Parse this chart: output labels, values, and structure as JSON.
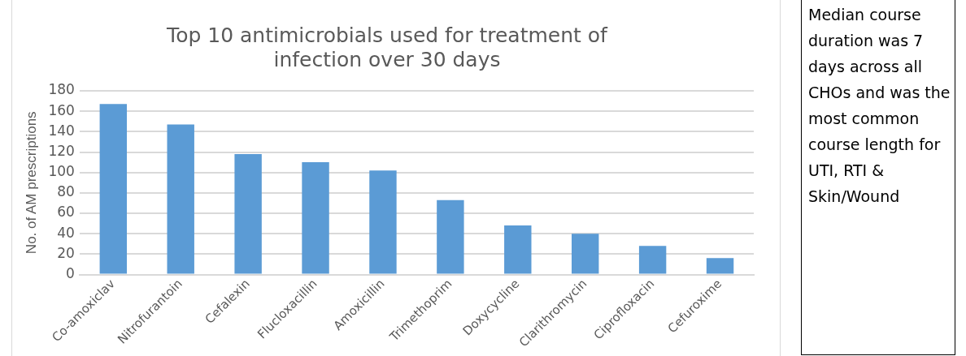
{
  "chart_data": {
    "type": "bar",
    "title": "Top 10 antimicrobials used for treatment of infection over 30 days",
    "ylabel": "No. of AM prescriptions",
    "categories": [
      "Co-amoxiclav",
      "Nitrofurantoin",
      "Cefalexin",
      "Flucloxacillin",
      "Amoxicillin",
      "Trimethoprim",
      "Doxycycline",
      "Clarithromycin",
      "Ciprofloxacin",
      "Cefuroxime"
    ],
    "values": [
      167,
      147,
      118,
      110,
      102,
      73,
      48,
      40,
      28,
      16
    ],
    "color": "#5b9bd5",
    "ylim": [
      0,
      180
    ],
    "yticks": [
      0,
      20,
      40,
      60,
      80,
      100,
      120,
      140,
      160,
      180
    ],
    "grid": "y",
    "annotations": [
      "Median course duration was 7 days across all CHOs and was the most common course length for UTI, RTI & Skin/Wound"
    ]
  }
}
